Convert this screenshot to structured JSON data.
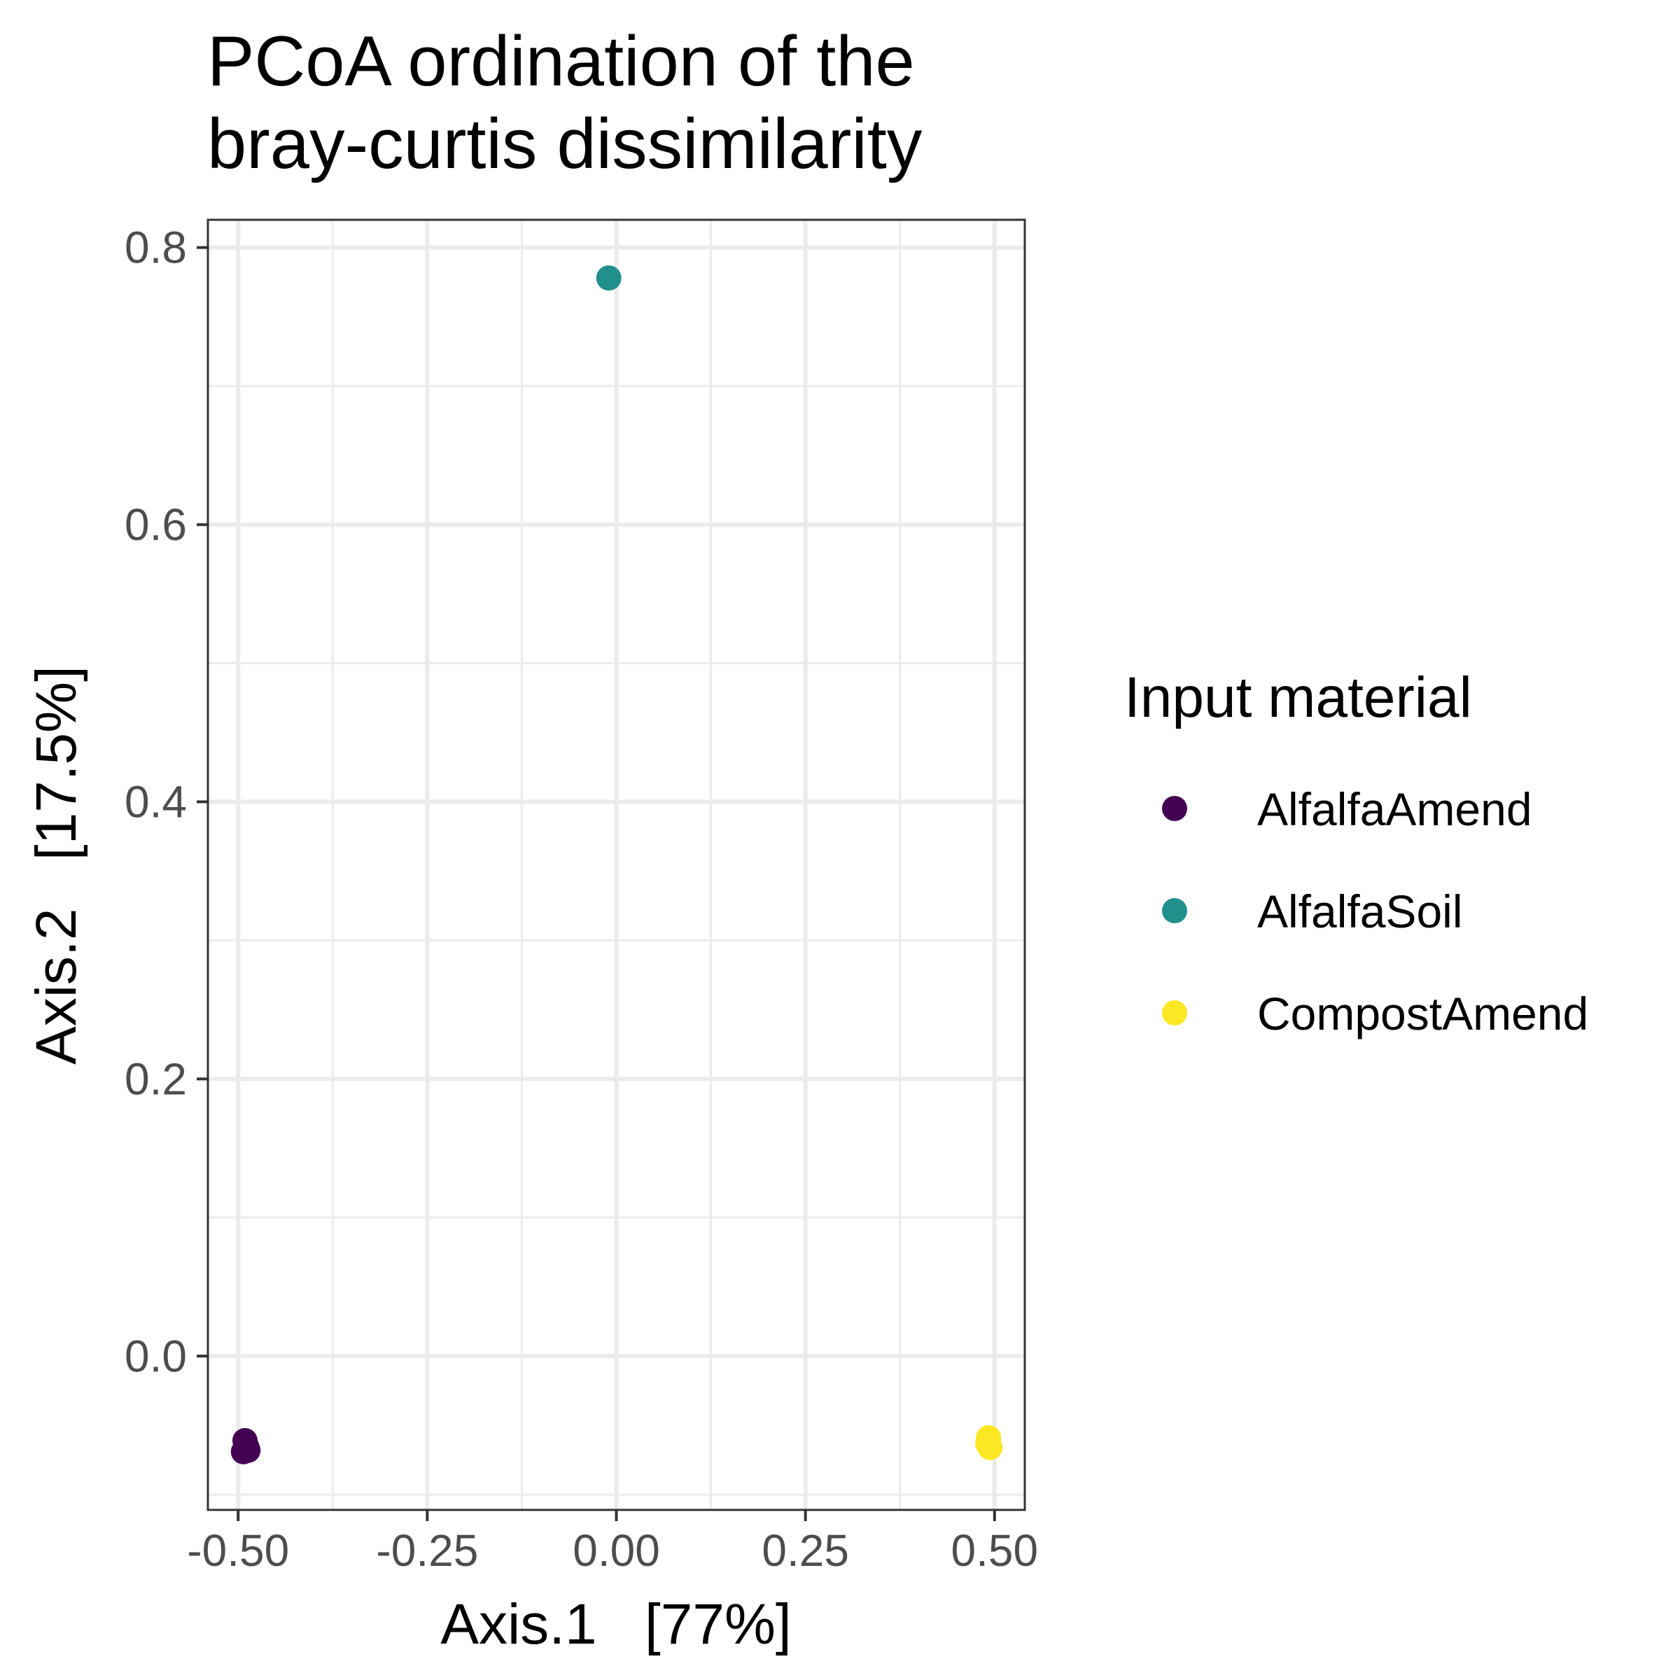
{
  "chart_data": {
    "type": "scatter",
    "title_lines": [
      "PCoA ordination of the",
      "bray-curtis dissimilarity"
    ],
    "xlabel": "Axis.1   [77%]",
    "ylabel": "Axis.2   [17.5%]",
    "xlim": [
      -0.54,
      0.54
    ],
    "ylim": [
      -0.111,
      0.82
    ],
    "x_ticks": [
      -0.5,
      -0.25,
      0.0,
      0.25,
      0.5
    ],
    "x_tick_labels": [
      "-0.50",
      "-0.25",
      "0.00",
      "0.25",
      "0.50"
    ],
    "y_ticks": [
      0.0,
      0.2,
      0.4,
      0.6,
      0.8
    ],
    "y_tick_labels": [
      "0.0",
      "0.2",
      "0.4",
      "0.6",
      "0.8"
    ],
    "x_minor_ticks": [
      -0.375,
      -0.125,
      0.125,
      0.375
    ],
    "y_minor_ticks": [
      -0.1,
      0.1,
      0.3,
      0.5,
      0.7
    ],
    "grid": true,
    "legend": {
      "title": "Input material",
      "position": "right"
    },
    "series": [
      {
        "name": "AlfalfaAmend",
        "color": "#440154",
        "points": [
          [
            -0.491,
            -0.061
          ],
          [
            -0.487,
            -0.068
          ],
          [
            -0.493,
            -0.069
          ],
          [
            -0.489,
            -0.065
          ]
        ]
      },
      {
        "name": "AlfalfaSoil",
        "color": "#21908C",
        "points": [
          [
            -0.01,
            0.778
          ]
        ]
      },
      {
        "name": "CompostAmend",
        "color": "#FDE725",
        "points": [
          [
            0.492,
            -0.059
          ],
          [
            0.494,
            -0.066
          ],
          [
            0.491,
            -0.063
          ]
        ]
      }
    ]
  }
}
